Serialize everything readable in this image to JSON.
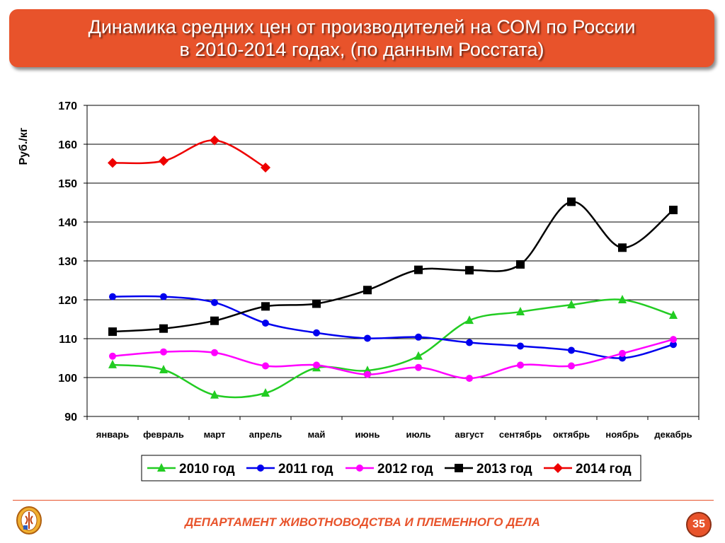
{
  "slide": {
    "title_line1": "Динамика средних цен от производителей на СОМ по России",
    "title_line2": "в 2010-2014 годах, (по данным Росстата)",
    "footer": "ДЕПАРТАМЕНТ ЖИВОТНОВОДСТВА И ПЛЕМЕННОГО ДЕЛА",
    "page_number": "35",
    "accent_color": "#e8532b"
  },
  "chart_data": {
    "type": "line",
    "ylabel": "Руб./кг",
    "xlabel": "",
    "ylim": [
      90,
      170
    ],
    "yticks": [
      90,
      100,
      110,
      120,
      130,
      140,
      150,
      160,
      170
    ],
    "grid": "horizontal",
    "legend_position": "bottom",
    "categories": [
      "январь",
      "февраль",
      "март",
      "апрель",
      "май",
      "июнь",
      "июль",
      "август",
      "сентябрь",
      "октябрь",
      "ноябрь",
      "декабрь"
    ],
    "series": [
      {
        "name": "2010 год",
        "color": "#22cc22",
        "marker": "triangle",
        "values": [
          103.3,
          102,
          95.5,
          96,
          102.5,
          101.8,
          105.5,
          114.7,
          116.9,
          118.7,
          120,
          116
        ]
      },
      {
        "name": "2011 год",
        "color": "#0000ee",
        "marker": "circle",
        "values": [
          120.8,
          120.8,
          119.3,
          114,
          111.5,
          110.1,
          110.4,
          109,
          108.1,
          107,
          105,
          108.5
        ]
      },
      {
        "name": "2012 год",
        "color": "#ff00ff",
        "marker": "circle",
        "values": [
          105.5,
          106.6,
          106.4,
          103,
          103.2,
          100.8,
          102.6,
          99.8,
          103.2,
          103,
          106.2,
          109.8
        ]
      },
      {
        "name": "2013 год",
        "color": "#000000",
        "marker": "square",
        "values": [
          111.8,
          112.6,
          114.6,
          118.3,
          119,
          122.5,
          127.7,
          127.6,
          129.1,
          145.2,
          133.4,
          143.1
        ]
      },
      {
        "name": "2014 год",
        "color": "#ee0000",
        "marker": "diamond",
        "values": [
          155.2,
          155.7,
          161,
          154,
          null,
          null,
          null,
          null,
          null,
          null,
          null,
          null
        ]
      }
    ]
  }
}
